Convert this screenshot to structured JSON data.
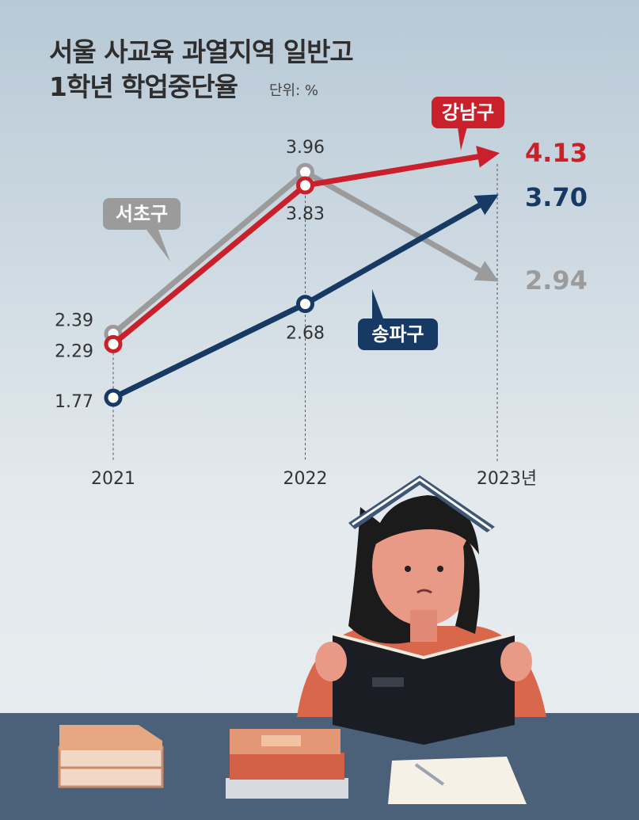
{
  "chart_data": {
    "type": "line",
    "title": "서울 사교육 과열지역 일반고\n1학년 학업중단율",
    "unit": "단위: %",
    "categories": [
      "2021",
      "2022",
      "2023년"
    ],
    "series": [
      {
        "name": "강남구",
        "color": "#c9202b",
        "values": [
          2.29,
          3.83,
          4.13
        ],
        "value_labels": [
          "2.29",
          "3.83",
          "4.13"
        ]
      },
      {
        "name": "서초구",
        "color": "#9b9b9b",
        "values": [
          2.39,
          3.96,
          2.94
        ],
        "value_labels": [
          "2.39",
          "3.96",
          "2.94"
        ]
      },
      {
        "name": "송파구",
        "color": "#173a64",
        "values": [
          1.77,
          2.68,
          3.7
        ],
        "value_labels": [
          "1.77",
          "2.68",
          "3.70"
        ]
      }
    ]
  }
}
